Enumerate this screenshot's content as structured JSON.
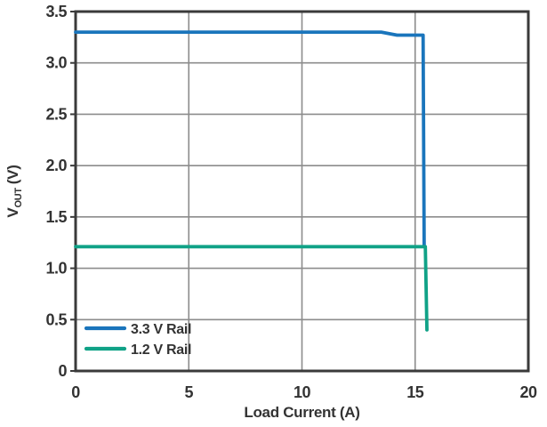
{
  "chart_data": {
    "type": "line",
    "title": "",
    "xlabel": "Load Current (A)",
    "ylabel": {
      "main": "V",
      "sub": "OUT",
      "unit": "(V)"
    },
    "xlim": [
      0,
      20
    ],
    "ylim": [
      0,
      3.5
    ],
    "grid": true,
    "legend_position": "bottom-left-inside",
    "x_ticks": {
      "values": [
        0,
        5,
        10,
        15,
        20
      ],
      "labels": [
        "0",
        "5",
        "10",
        "15",
        "20"
      ]
    },
    "y_ticks": {
      "values": [
        0,
        0.5,
        1.0,
        1.5,
        2.0,
        2.5,
        3.0,
        3.5
      ],
      "labels": [
        "0",
        "0.5",
        "1.0",
        "1.5",
        "2.0",
        "2.5",
        "3.0",
        "3.5"
      ]
    },
    "colors": {
      "axis": "#3a3a3a",
      "grid": "#8c8c8c",
      "text": "#333333",
      "background": "#ffffff"
    },
    "series": [
      {
        "name": "3.3 V Rail",
        "color": "#1a75bc",
        "points": [
          [
            0,
            3.3
          ],
          [
            13.5,
            3.3
          ],
          [
            14.2,
            3.27
          ],
          [
            15.35,
            3.27
          ],
          [
            15.4,
            1.22
          ]
        ]
      },
      {
        "name": "1.2 V Rail",
        "color": "#10a287",
        "points": [
          [
            0,
            1.21
          ],
          [
            15.45,
            1.21
          ],
          [
            15.52,
            0.4
          ]
        ]
      }
    ]
  }
}
